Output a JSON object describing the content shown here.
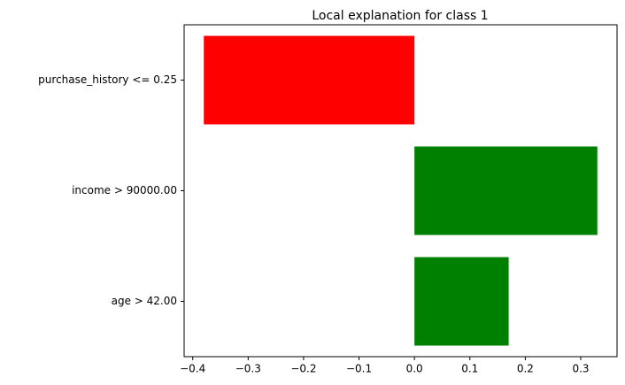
{
  "chart_data": {
    "type": "barh",
    "title": "Local explanation for class 1",
    "categories": [
      "purchase_history <= 0.25",
      "income > 90000.00",
      "age > 42.00"
    ],
    "values": [
      -0.38,
      0.33,
      0.17
    ],
    "colors": [
      "#ff0000",
      "#008000",
      "#008000"
    ],
    "xlim": [
      -0.4155,
      0.3655
    ],
    "xticks": [
      {
        "value": -0.4,
        "label": "−0.4"
      },
      {
        "value": -0.3,
        "label": "−0.3"
      },
      {
        "value": -0.2,
        "label": "−0.2"
      },
      {
        "value": -0.1,
        "label": "−0.1"
      },
      {
        "value": 0.0,
        "label": "0.0"
      },
      {
        "value": 0.1,
        "label": "0.1"
      },
      {
        "value": 0.2,
        "label": "0.2"
      },
      {
        "value": 0.3,
        "label": "0.3"
      }
    ]
  }
}
